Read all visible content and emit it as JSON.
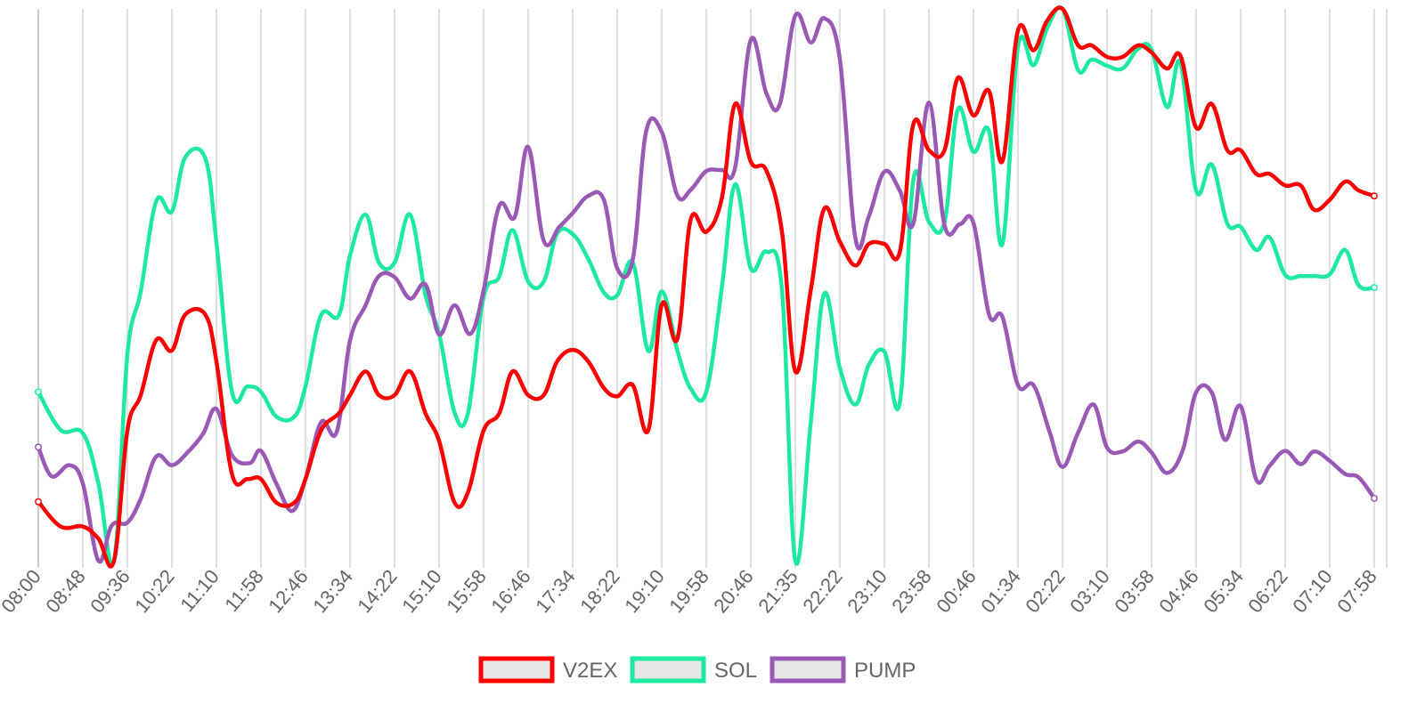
{
  "chart_data": {
    "type": "line",
    "title": "",
    "xlabel": "",
    "ylabel": "",
    "grid": "vertical",
    "legend_position": "bottom",
    "x_ticks": [
      "08:00",
      "08:48",
      "09:36",
      "10:22",
      "11:10",
      "11:58",
      "12:46",
      "13:34",
      "14:22",
      "15:10",
      "15:58",
      "16:46",
      "17:34",
      "18:22",
      "19:10",
      "19:58",
      "20:46",
      "21:35",
      "22:22",
      "23:10",
      "23:58",
      "00:46",
      "01:34",
      "02:22",
      "03:10",
      "03:58",
      "04:46",
      "05:34",
      "06:22",
      "07:10",
      "07:58"
    ],
    "series": [
      {
        "name": "V2EX",
        "color": "#ff0000",
        "values": [
          [
            0,
            0.107
          ],
          [
            0.5,
            0.062
          ],
          [
            1,
            0.062
          ],
          [
            1.35,
            0.04
          ],
          [
            1.7,
            0.0
          ],
          [
            2,
            0.236
          ],
          [
            2.3,
            0.3
          ],
          [
            2.65,
            0.4
          ],
          [
            3,
            0.381
          ],
          [
            3.3,
            0.446
          ],
          [
            3.75,
            0.446
          ],
          [
            4,
            0.361
          ],
          [
            4.35,
            0.157
          ],
          [
            4.7,
            0.148
          ],
          [
            5,
            0.148
          ],
          [
            5.35,
            0.105
          ],
          [
            5.75,
            0.105
          ],
          [
            6,
            0.148
          ],
          [
            6.35,
            0.236
          ],
          [
            6.75,
            0.267
          ],
          [
            7,
            0.3
          ],
          [
            7.35,
            0.343
          ],
          [
            7.65,
            0.3
          ],
          [
            8,
            0.3
          ],
          [
            8.35,
            0.343
          ],
          [
            8.7,
            0.266
          ],
          [
            9,
            0.217
          ],
          [
            9.35,
            0.105
          ],
          [
            9.65,
            0.124
          ],
          [
            10,
            0.236
          ],
          [
            10.35,
            0.267
          ],
          [
            10.65,
            0.343
          ],
          [
            11,
            0.3
          ],
          [
            11.35,
            0.3
          ],
          [
            11.65,
            0.361
          ],
          [
            12,
            0.382
          ],
          [
            12.35,
            0.361
          ],
          [
            12.7,
            0.313
          ],
          [
            13,
            0.298
          ],
          [
            13.35,
            0.318
          ],
          [
            13.7,
            0.237
          ],
          [
            14,
            0.464
          ],
          [
            14.35,
            0.402
          ],
          [
            14.65,
            0.618
          ],
          [
            15,
            0.596
          ],
          [
            15.35,
            0.657
          ],
          [
            15.65,
            0.828
          ],
          [
            16,
            0.723
          ],
          [
            16.35,
            0.707
          ],
          [
            16.7,
            0.596
          ],
          [
            17,
            0.343
          ],
          [
            17.35,
            0.492
          ],
          [
            17.65,
            0.638
          ],
          [
            18,
            0.578
          ],
          [
            18.35,
            0.535
          ],
          [
            18.65,
            0.574
          ],
          [
            19,
            0.574
          ],
          [
            19.35,
            0.561
          ],
          [
            19.65,
            0.791
          ],
          [
            20,
            0.744
          ],
          [
            20.35,
            0.744
          ],
          [
            20.65,
            0.875
          ],
          [
            21,
            0.807
          ],
          [
            21.35,
            0.851
          ],
          [
            21.65,
            0.724
          ],
          [
            22,
            0.961
          ],
          [
            22.35,
            0.925
          ],
          [
            22.65,
            0.978
          ],
          [
            23,
            1.0
          ],
          [
            23.35,
            0.934
          ],
          [
            23.65,
            0.934
          ],
          [
            24,
            0.913
          ],
          [
            24.35,
            0.913
          ],
          [
            24.7,
            0.934
          ],
          [
            25,
            0.921
          ],
          [
            25.35,
            0.892
          ],
          [
            25.65,
            0.915
          ],
          [
            26,
            0.785
          ],
          [
            26.35,
            0.828
          ],
          [
            26.7,
            0.744
          ],
          [
            27,
            0.744
          ],
          [
            27.35,
            0.701
          ],
          [
            27.65,
            0.701
          ],
          [
            28,
            0.68
          ],
          [
            28.35,
            0.68
          ],
          [
            28.65,
            0.636
          ],
          [
            29,
            0.654
          ],
          [
            29.35,
            0.687
          ],
          [
            29.65,
            0.671
          ],
          [
            30,
            0.661
          ]
        ]
      },
      {
        "name": "SOL",
        "color": "#1de9a0",
        "values": [
          [
            0,
            0.306
          ],
          [
            0.5,
            0.237
          ],
          [
            1,
            0.231
          ],
          [
            1.35,
            0.14
          ],
          [
            1.7,
            0.0
          ],
          [
            2,
            0.373
          ],
          [
            2.3,
            0.488
          ],
          [
            2.65,
            0.652
          ],
          [
            3,
            0.633
          ],
          [
            3.3,
            0.731
          ],
          [
            3.75,
            0.729
          ],
          [
            4,
            0.577
          ],
          [
            4.35,
            0.306
          ],
          [
            4.7,
            0.316
          ],
          [
            5,
            0.306
          ],
          [
            5.35,
            0.261
          ],
          [
            5.75,
            0.261
          ],
          [
            6,
            0.316
          ],
          [
            6.35,
            0.445
          ],
          [
            6.75,
            0.445
          ],
          [
            7,
            0.553
          ],
          [
            7.35,
            0.627
          ],
          [
            7.65,
            0.54
          ],
          [
            8,
            0.54
          ],
          [
            8.35,
            0.627
          ],
          [
            8.7,
            0.48
          ],
          [
            9,
            0.412
          ],
          [
            9.35,
            0.268
          ],
          [
            9.65,
            0.268
          ],
          [
            10,
            0.478
          ],
          [
            10.35,
            0.515
          ],
          [
            10.65,
            0.599
          ],
          [
            11,
            0.506
          ],
          [
            11.35,
            0.506
          ],
          [
            11.65,
            0.593
          ],
          [
            12,
            0.592
          ],
          [
            12.35,
            0.547
          ],
          [
            12.7,
            0.486
          ],
          [
            13,
            0.481
          ],
          [
            13.35,
            0.54
          ],
          [
            13.7,
            0.38
          ],
          [
            14,
            0.488
          ],
          [
            14.35,
            0.381
          ],
          [
            14.65,
            0.312
          ],
          [
            15,
            0.306
          ],
          [
            15.35,
            0.495
          ],
          [
            15.65,
            0.682
          ],
          [
            16,
            0.53
          ],
          [
            16.35,
            0.56
          ],
          [
            16.7,
            0.491
          ],
          [
            17,
            0.0
          ],
          [
            17.35,
            0.254
          ],
          [
            17.65,
            0.484
          ],
          [
            18,
            0.349
          ],
          [
            18.35,
            0.283
          ],
          [
            18.65,
            0.355
          ],
          [
            19,
            0.379
          ],
          [
            19.35,
            0.288
          ],
          [
            19.65,
            0.69
          ],
          [
            20,
            0.614
          ],
          [
            20.35,
            0.614
          ],
          [
            20.65,
            0.818
          ],
          [
            21,
            0.741
          ],
          [
            21.35,
            0.778
          ],
          [
            21.65,
            0.574
          ],
          [
            22,
            0.931
          ],
          [
            22.35,
            0.898
          ],
          [
            22.65,
            0.964
          ],
          [
            23,
            1.0
          ],
          [
            23.35,
            0.889
          ],
          [
            23.65,
            0.908
          ],
          [
            24,
            0.897
          ],
          [
            24.35,
            0.892
          ],
          [
            24.7,
            0.928
          ],
          [
            25,
            0.926
          ],
          [
            25.35,
            0.822
          ],
          [
            25.65,
            0.902
          ],
          [
            26,
            0.671
          ],
          [
            26.35,
            0.718
          ],
          [
            26.7,
            0.611
          ],
          [
            27,
            0.605
          ],
          [
            27.35,
            0.563
          ],
          [
            27.65,
            0.586
          ],
          [
            28,
            0.518
          ],
          [
            28.35,
            0.516
          ],
          [
            28.65,
            0.516
          ],
          [
            29,
            0.519
          ],
          [
            29.35,
            0.563
          ],
          [
            29.65,
            0.499
          ],
          [
            30,
            0.495
          ]
        ]
      },
      {
        "name": "PUMP",
        "color": "#9b59b6",
        "values": [
          [
            0,
            0.206
          ],
          [
            0.3,
            0.153
          ],
          [
            0.7,
            0.173
          ],
          [
            1,
            0.14
          ],
          [
            1.35,
            0.0
          ],
          [
            1.65,
            0.064
          ],
          [
            2,
            0.069
          ],
          [
            2.3,
            0.112
          ],
          [
            2.65,
            0.189
          ],
          [
            3,
            0.173
          ],
          [
            3.35,
            0.196
          ],
          [
            3.7,
            0.23
          ],
          [
            4,
            0.275
          ],
          [
            4.35,
            0.191
          ],
          [
            4.75,
            0.177
          ],
          [
            5,
            0.199
          ],
          [
            5.35,
            0.139
          ],
          [
            5.7,
            0.09
          ],
          [
            6,
            0.148
          ],
          [
            6.35,
            0.251
          ],
          [
            6.7,
            0.233
          ],
          [
            7,
            0.399
          ],
          [
            7.35,
            0.463
          ],
          [
            7.65,
            0.516
          ],
          [
            8,
            0.514
          ],
          [
            8.35,
            0.475
          ],
          [
            8.7,
            0.5
          ],
          [
            9,
            0.41
          ],
          [
            9.35,
            0.463
          ],
          [
            9.7,
            0.411
          ],
          [
            10,
            0.49
          ],
          [
            10.35,
            0.643
          ],
          [
            10.7,
            0.623
          ],
          [
            11,
            0.75
          ],
          [
            11.35,
            0.58
          ],
          [
            11.7,
            0.605
          ],
          [
            12,
            0.63
          ],
          [
            12.35,
            0.661
          ],
          [
            12.7,
            0.654
          ],
          [
            13,
            0.53
          ],
          [
            13.35,
            0.546
          ],
          [
            13.65,
            0.778
          ],
          [
            14,
            0.777
          ],
          [
            14.35,
            0.662
          ],
          [
            14.65,
            0.672
          ],
          [
            15,
            0.706
          ],
          [
            15.35,
            0.708
          ],
          [
            15.65,
            0.713
          ],
          [
            16,
            0.944
          ],
          [
            16.35,
            0.847
          ],
          [
            16.65,
            0.827
          ],
          [
            17,
            0.988
          ],
          [
            17.35,
            0.939
          ],
          [
            17.65,
            0.983
          ],
          [
            18,
            0.909
          ],
          [
            18.35,
            0.584
          ],
          [
            18.65,
            0.624
          ],
          [
            19,
            0.705
          ],
          [
            19.35,
            0.67
          ],
          [
            19.65,
            0.611
          ],
          [
            20,
            0.83
          ],
          [
            20.35,
            0.608
          ],
          [
            20.7,
            0.61
          ],
          [
            21,
            0.612
          ],
          [
            21.35,
            0.446
          ],
          [
            21.65,
            0.442
          ],
          [
            22,
            0.318
          ],
          [
            22.35,
            0.318
          ],
          [
            22.7,
            0.236
          ],
          [
            23,
            0.17
          ],
          [
            23.35,
            0.232
          ],
          [
            23.7,
            0.283
          ],
          [
            24,
            0.205
          ],
          [
            24.35,
            0.198
          ],
          [
            24.7,
            0.216
          ],
          [
            25,
            0.196
          ],
          [
            25.35,
            0.159
          ],
          [
            25.7,
            0.2
          ],
          [
            26,
            0.305
          ],
          [
            26.35,
            0.305
          ],
          [
            26.65,
            0.219
          ],
          [
            27,
            0.28
          ],
          [
            27.35,
            0.147
          ],
          [
            27.65,
            0.172
          ],
          [
            28,
            0.199
          ],
          [
            28.35,
            0.175
          ],
          [
            28.65,
            0.198
          ],
          [
            29,
            0.181
          ],
          [
            29.35,
            0.157
          ],
          [
            29.65,
            0.151
          ],
          [
            30,
            0.113
          ]
        ]
      }
    ]
  }
}
